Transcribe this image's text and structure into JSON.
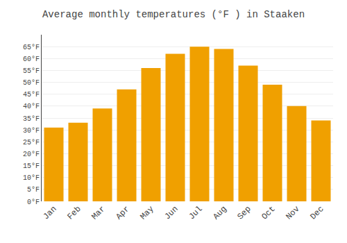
{
  "chart_data": {
    "type": "bar",
    "title": "Average monthly temperatures (°F ) in Staaken",
    "categories": [
      "Jan",
      "Feb",
      "Mar",
      "Apr",
      "May",
      "Jun",
      "Jul",
      "Aug",
      "Sep",
      "Oct",
      "Nov",
      "Dec"
    ],
    "values": [
      31,
      33,
      39,
      47,
      56,
      62,
      65,
      64,
      57,
      49,
      40,
      34
    ],
    "color": "#F0A000",
    "ylim": [
      0,
      70
    ],
    "yticks": [
      {
        "value": 0,
        "label": "0°F"
      },
      {
        "value": 5,
        "label": "5°F"
      },
      {
        "value": 10,
        "label": "10°F"
      },
      {
        "value": 15,
        "label": "15°F"
      },
      {
        "value": 20,
        "label": "20°F"
      },
      {
        "value": 25,
        "label": "25°F"
      },
      {
        "value": 30,
        "label": "30°F"
      },
      {
        "value": 35,
        "label": "35°F"
      },
      {
        "value": 40,
        "label": "40°F"
      },
      {
        "value": 45,
        "label": "45°F"
      },
      {
        "value": 50,
        "label": "50°F"
      },
      {
        "value": 55,
        "label": "55°F"
      },
      {
        "value": 60,
        "label": "60°F"
      },
      {
        "value": 65,
        "label": "65°F"
      }
    ],
    "grid": true
  }
}
